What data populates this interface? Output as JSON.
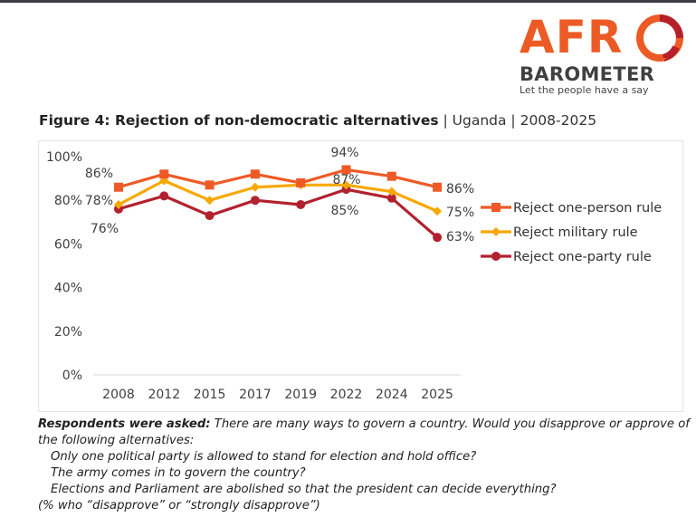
{
  "logo": {
    "brand_top": "AFR",
    "brand_bottom": "BAROMETER",
    "tagline": "Let the people have a say",
    "colors": {
      "orange": "#ec5b25",
      "dark_red": "#b5202a",
      "gray": "#404040"
    }
  },
  "figure": {
    "title_bold": "Figure 4: Rejection of non-democratic alternatives",
    "sep1": " | ",
    "country": "Uganda",
    "sep2": " | ",
    "years": "2008-2025"
  },
  "chart_data": {
    "type": "line",
    "title": "Figure 4: Rejection of non-democratic alternatives | Uganda | 2008-2025",
    "xlabel": "",
    "ylabel": "",
    "categories": [
      "2008",
      "2012",
      "2015",
      "2017",
      "2019",
      "2022",
      "2024",
      "2025"
    ],
    "ylim": [
      0,
      100
    ],
    "yticks": [
      0,
      20,
      40,
      60,
      80,
      100
    ],
    "ytick_labels": [
      "0%",
      "20%",
      "40%",
      "60%",
      "80%",
      "100%"
    ],
    "grid": false,
    "legend_position": "right",
    "series": [
      {
        "name": "Reject one-person rule",
        "color": "#ee5a26",
        "marker": "square",
        "values": [
          86,
          92,
          87,
          92,
          88,
          94,
          91,
          86
        ],
        "labels": {
          "0": "86%",
          "5": "94%",
          "7": "86%"
        }
      },
      {
        "name": "Reject military rule",
        "color": "#f7a800",
        "marker": "diamond",
        "values": [
          78,
          89,
          80,
          86,
          87,
          87,
          84,
          75
        ],
        "labels": {
          "0": "78%",
          "5": "87%",
          "7": "75%"
        }
      },
      {
        "name": "Reject one-party rule",
        "color": "#b2212e",
        "marker": "circle",
        "values": [
          76,
          82,
          73,
          80,
          78,
          85,
          81,
          63
        ],
        "labels": {
          "0": "76%",
          "5": "85%",
          "7": "63%"
        }
      }
    ]
  },
  "note": {
    "label": "Respondents were asked:",
    "question": " There are many ways to govern a country. Would you disapprove or approve of the following alternatives:",
    "items": [
      "Only one political party is allowed to stand for election and hold office?",
      "The army comes in to govern the country?",
      "Elections and Parliament are abolished so that the president can decide everything?"
    ],
    "footnote": "(% who “disapprove” or “strongly disapprove”)"
  }
}
